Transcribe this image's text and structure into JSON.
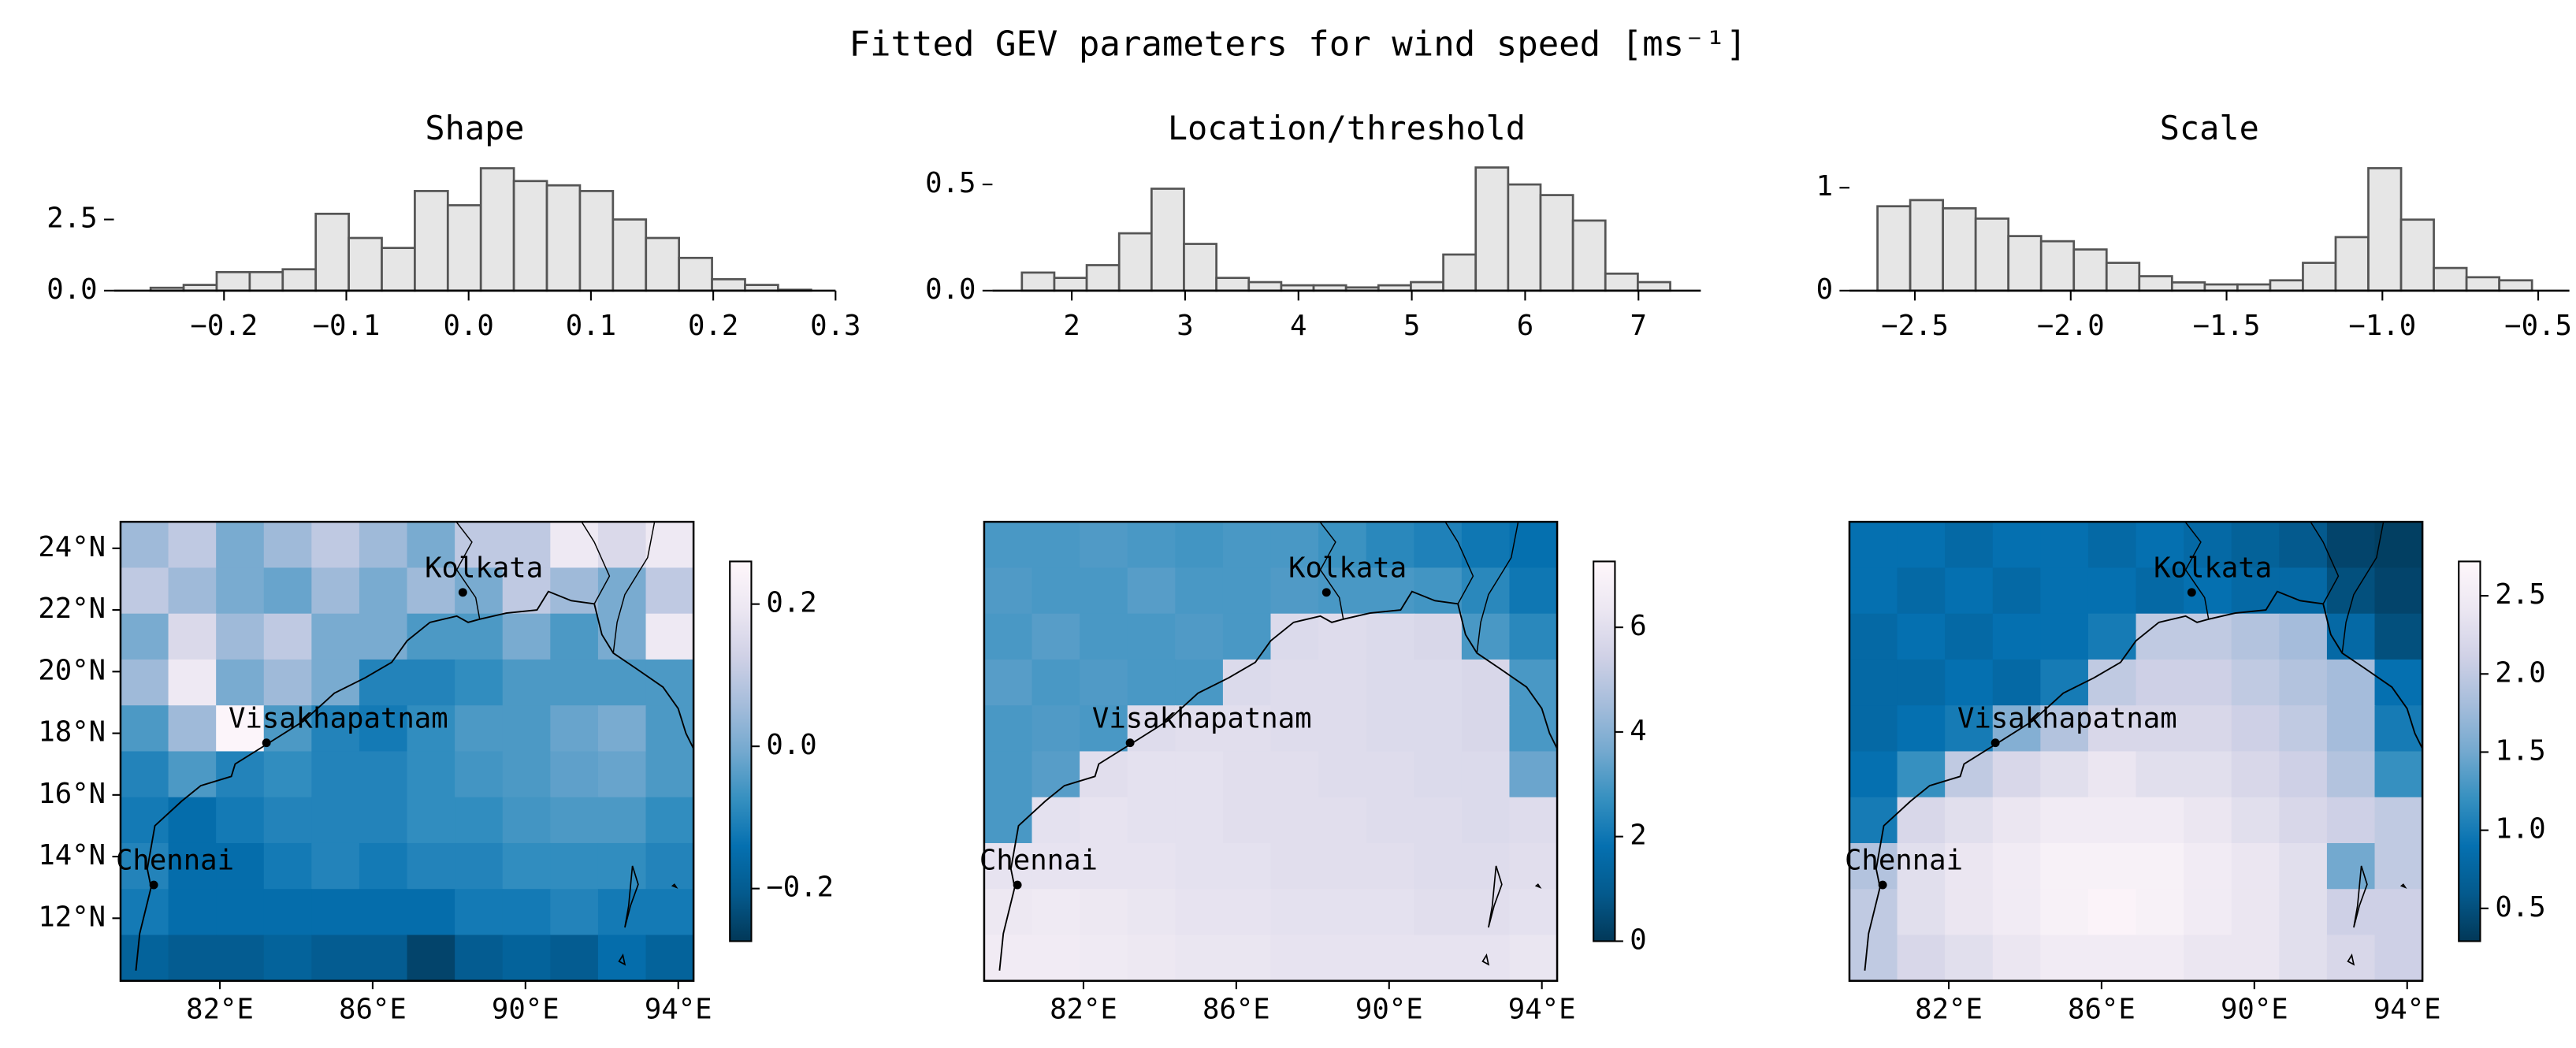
{
  "title": "Fitted GEV parameters for wind speed [ms⁻¹]",
  "chart_data": [
    {
      "type": "histogram",
      "title": "Shape",
      "color": "#e6e6e6",
      "edgecolor": "#555555",
      "bins": [
        -0.26,
        -0.233,
        -0.206,
        -0.179,
        -0.152,
        -0.125,
        -0.098,
        -0.071,
        -0.044,
        -0.017,
        0.01,
        0.037,
        0.064,
        0.091,
        0.118,
        0.145,
        0.172,
        0.199,
        0.226,
        0.253,
        0.28
      ],
      "counts": [
        0.1,
        0.2,
        0.65,
        0.65,
        0.75,
        2.7,
        1.85,
        1.5,
        3.5,
        3.0,
        4.3,
        3.85,
        3.7,
        3.5,
        2.5,
        1.85,
        1.15,
        0.4,
        0.2,
        0.03
      ],
      "xlim": [
        -0.29,
        0.3
      ],
      "xticks": [
        {
          "value": -0.2,
          "label": "−0.2"
        },
        {
          "value": -0.1,
          "label": "−0.1"
        },
        {
          "value": 0,
          "label": "0.0"
        },
        0.1,
        0.2,
        0.3
      ],
      "ylim": [
        0,
        4.7
      ],
      "yticks": [
        {
          "value": 0,
          "label": "0.0"
        },
        2.5
      ]
    },
    {
      "type": "histogram",
      "title": "Location/threshold",
      "color": "#e6e6e6",
      "edgecolor": "#555555",
      "bins": [
        1.56,
        1.846,
        2.132,
        2.418,
        2.704,
        2.99,
        3.276,
        3.562,
        3.848,
        4.134,
        4.42,
        4.706,
        4.992,
        5.278,
        5.564,
        5.85,
        6.136,
        6.422,
        6.708,
        6.994,
        7.28
      ],
      "counts": [
        0.085,
        0.06,
        0.12,
        0.27,
        0.48,
        0.22,
        0.06,
        0.04,
        0.025,
        0.025,
        0.015,
        0.025,
        0.04,
        0.17,
        0.58,
        0.5,
        0.45,
        0.33,
        0.08,
        0.04
      ],
      "xlim": [
        1.3,
        7.55
      ],
      "xticks": [
        2,
        3,
        4,
        5,
        6,
        7
      ],
      "ylim": [
        0,
        0.63
      ],
      "yticks": [
        {
          "value": 0,
          "label": "0.0"
        },
        0.5
      ]
    },
    {
      "type": "histogram",
      "title": "Scale",
      "color": "#e6e6e6",
      "edgecolor": "#555555",
      "bins": [
        -2.62,
        -2.515,
        -2.41,
        -2.305,
        -2.2,
        -2.095,
        -1.99,
        -1.885,
        -1.78,
        -1.675,
        -1.57,
        -1.465,
        -1.36,
        -1.255,
        -1.15,
        -1.045,
        -0.94,
        -0.835,
        -0.73,
        -0.625,
        -0.52
      ],
      "counts": [
        0.82,
        0.88,
        0.8,
        0.7,
        0.53,
        0.48,
        0.4,
        0.27,
        0.14,
        0.08,
        0.06,
        0.06,
        0.1,
        0.27,
        0.52,
        1.19,
        0.69,
        0.22,
        0.13,
        0.1
      ],
      "xlim": [
        -2.71,
        -0.4
      ],
      "xticks": [
        {
          "value": -2.5,
          "label": "−2.5"
        },
        {
          "value": -2.0,
          "label": "−2.0"
        },
        {
          "value": -1.5,
          "label": "−1.5"
        },
        {
          "value": -1.0,
          "label": "−1.0"
        },
        {
          "value": -0.5,
          "label": "−0.5"
        }
      ],
      "ylim": [
        0,
        1.3
      ],
      "yticks": [
        0,
        1
      ]
    },
    {
      "type": "map",
      "colormap": [
        "#023858",
        "#045a8d",
        "#0570b0",
        "#3690c0",
        "#74a9cf",
        "#a6bddb",
        "#d0d1e6",
        "#ece7f2",
        "#fff7fb"
      ],
      "clim": [
        -0.274,
        0.26
      ],
      "cticks": [
        {
          "value": -0.2,
          "label": "−0.2"
        },
        {
          "value": 0,
          "label": "0.0"
        },
        0.2
      ],
      "xlim": [
        79.4,
        94.4
      ],
      "xticks": [
        {
          "value": 82,
          "label": "82°E"
        },
        {
          "value": 86,
          "label": "86°E"
        },
        {
          "value": 90,
          "label": "90°E"
        },
        {
          "value": 94,
          "label": "94°E"
        }
      ],
      "ylim": [
        9.97,
        24.86
      ],
      "yticks": [
        {
          "value": 12,
          "label": "12°N"
        },
        {
          "value": 14,
          "label": "14°N"
        },
        {
          "value": 16,
          "label": "16°N"
        },
        {
          "value": 18,
          "label": "18°N"
        },
        {
          "value": 20,
          "label": "20°N"
        },
        {
          "value": 22,
          "label": "22°N"
        },
        {
          "value": 24,
          "label": "24°N"
        }
      ],
      "annotations": [
        {
          "text": "Kolkata",
          "x": 88.36,
          "y": 22.57
        },
        {
          "text": "Visakhapatnam",
          "x": 83.22,
          "y": 17.69
        },
        {
          "text": "Chennai",
          "x": 80.27,
          "y": 13.08
        }
      ],
      "grid": [
        [
          0.05,
          0.1,
          0.0,
          0.05,
          0.1,
          0.05,
          0.0,
          0.1,
          0.1,
          0.2,
          0.15,
          0.2
        ],
        [
          0.1,
          0.05,
          0.0,
          -0.02,
          0.05,
          0.0,
          0.05,
          0.0,
          0.1,
          0.05,
          0.0,
          0.1
        ],
        [
          0.0,
          0.15,
          0.05,
          0.1,
          0.0,
          0.0,
          -0.05,
          -0.05,
          0.0,
          -0.05,
          0.0,
          0.2
        ],
        [
          0.05,
          0.2,
          0.0,
          0.05,
          0.0,
          -0.1,
          -0.1,
          -0.08,
          -0.05,
          -0.05,
          -0.05,
          -0.05
        ],
        [
          -0.05,
          0.05,
          0.25,
          -0.05,
          -0.1,
          -0.12,
          -0.08,
          -0.05,
          -0.05,
          -0.02,
          0.0,
          -0.05
        ],
        [
          -0.1,
          -0.05,
          -0.1,
          -0.08,
          -0.1,
          -0.1,
          -0.08,
          -0.06,
          -0.05,
          -0.03,
          -0.02,
          -0.05
        ],
        [
          -0.12,
          -0.15,
          -0.12,
          -0.1,
          -0.1,
          -0.1,
          -0.08,
          -0.08,
          -0.06,
          -0.05,
          -0.05,
          -0.08
        ],
        [
          -0.1,
          -0.15,
          -0.15,
          -0.12,
          -0.1,
          -0.12,
          -0.1,
          -0.1,
          -0.08,
          -0.08,
          -0.08,
          -0.1
        ],
        [
          -0.12,
          -0.15,
          -0.15,
          -0.15,
          -0.15,
          -0.15,
          -0.15,
          -0.12,
          -0.12,
          -0.1,
          -0.12,
          -0.12
        ],
        [
          -0.18,
          -0.2,
          -0.2,
          -0.18,
          -0.2,
          -0.2,
          -0.25,
          -0.2,
          -0.18,
          -0.2,
          -0.15,
          -0.18
        ]
      ]
    },
    {
      "type": "map",
      "colormap": [
        "#023858",
        "#045a8d",
        "#0570b0",
        "#3690c0",
        "#74a9cf",
        "#a6bddb",
        "#d0d1e6",
        "#ece7f2",
        "#fff7fb"
      ],
      "clim": [
        0,
        7.26
      ],
      "cticks": [
        0,
        2,
        4,
        6
      ],
      "xlim": [
        79.4,
        94.4
      ],
      "xticks": [
        {
          "value": 82,
          "label": "82°E"
        },
        {
          "value": 86,
          "label": "86°E"
        },
        {
          "value": 90,
          "label": "90°E"
        },
        {
          "value": 94,
          "label": "94°E"
        }
      ],
      "ylim": [
        9.97,
        24.86
      ],
      "annotations": [
        {
          "text": "Kolkata",
          "x": 88.36,
          "y": 22.57
        },
        {
          "text": "Visakhapatnam",
          "x": 83.22,
          "y": 17.69
        },
        {
          "text": "Chennai",
          "x": 80.27,
          "y": 13.08
        }
      ],
      "grid": [
        [
          3,
          3,
          3.1,
          3,
          2.9,
          3,
          3,
          2.8,
          2.5,
          2.3,
          2,
          1.8
        ],
        [
          3.1,
          3,
          3,
          3.2,
          3,
          3,
          3.1,
          3,
          3,
          2.9,
          2.5,
          2
        ],
        [
          3,
          3.2,
          3,
          3,
          3.1,
          3,
          5.8,
          5.9,
          5.8,
          5.7,
          3,
          2.5
        ],
        [
          3.2,
          3,
          3.1,
          3,
          3,
          5.8,
          5.9,
          5.9,
          5.8,
          5.8,
          5.7,
          3
        ],
        [
          3,
          3.1,
          3,
          5.9,
          6,
          6,
          5.9,
          5.9,
          5.8,
          5.8,
          5.7,
          3
        ],
        [
          3,
          3.2,
          6,
          6.1,
          6.1,
          6,
          6,
          5.9,
          5.9,
          5.8,
          5.8,
          3.5
        ],
        [
          3,
          6.1,
          6.2,
          6.1,
          6.1,
          6,
          6,
          6,
          5.9,
          5.9,
          5.8,
          5.9
        ],
        [
          6.2,
          6.2,
          6.2,
          6.2,
          6.1,
          6.1,
          6,
          6,
          6,
          5.9,
          5.9,
          6
        ],
        [
          6.4,
          6.5,
          6.4,
          6.3,
          6.2,
          6.2,
          6.1,
          6.1,
          6.1,
          6,
          6,
          6.1
        ],
        [
          6.6,
          6.6,
          6.5,
          6.4,
          6.3,
          6.3,
          6.2,
          6.2,
          6.2,
          6.2,
          6.2,
          6.3
        ]
      ]
    },
    {
      "type": "map",
      "colormap": [
        "#023858",
        "#045a8d",
        "#0570b0",
        "#3690c0",
        "#74a9cf",
        "#a6bddb",
        "#d0d1e6",
        "#ece7f2",
        "#fff7fb"
      ],
      "clim": [
        0.29,
        2.72
      ],
      "cticks": [
        0.5,
        {
          "value": 1,
          "label": "1.0"
        },
        1.5,
        {
          "value": 2,
          "label": "2.0"
        },
        2.5
      ],
      "xlim": [
        79.4,
        94.4
      ],
      "xticks": [
        {
          "value": 82,
          "label": "82°E"
        },
        {
          "value": 86,
          "label": "86°E"
        },
        {
          "value": 90,
          "label": "90°E"
        },
        {
          "value": 94,
          "label": "94°E"
        }
      ],
      "ylim": [
        9.97,
        24.86
      ],
      "annotations": [
        {
          "text": "Kolkata",
          "x": 88.36,
          "y": 22.57
        },
        {
          "text": "Visakhapatnam",
          "x": 83.22,
          "y": 17.69
        },
        {
          "text": "Chennai",
          "x": 80.27,
          "y": 13.08
        }
      ],
      "grid": [
        [
          0.9,
          0.9,
          0.8,
          0.9,
          0.9,
          0.8,
          0.9,
          0.8,
          0.7,
          0.6,
          0.4,
          0.35
        ],
        [
          0.9,
          0.8,
          0.9,
          0.8,
          0.9,
          0.9,
          0.8,
          0.9,
          0.8,
          0.8,
          0.5,
          0.4
        ],
        [
          0.8,
          0.9,
          0.8,
          0.9,
          0.9,
          1.0,
          2.0,
          2.0,
          1.9,
          1.8,
          0.8,
          0.5
        ],
        [
          0.8,
          0.8,
          0.9,
          0.8,
          1.0,
          2.0,
          2.1,
          2.1,
          2.0,
          1.9,
          1.8,
          0.9
        ],
        [
          0.8,
          0.9,
          1.0,
          1.6,
          1.9,
          2.2,
          2.2,
          2.2,
          2.1,
          2.0,
          1.8,
          1.0
        ],
        [
          0.9,
          1.2,
          2.0,
          2.2,
          2.3,
          2.4,
          2.3,
          2.3,
          2.2,
          2.1,
          1.9,
          1.2
        ],
        [
          1.0,
          2.2,
          2.3,
          2.4,
          2.5,
          2.5,
          2.5,
          2.4,
          2.3,
          2.2,
          2.1,
          2.0
        ],
        [
          1.9,
          2.3,
          2.4,
          2.5,
          2.6,
          2.6,
          2.6,
          2.5,
          2.4,
          2.3,
          1.5,
          2.0
        ],
        [
          2.0,
          2.3,
          2.4,
          2.5,
          2.6,
          2.65,
          2.6,
          2.5,
          2.4,
          2.3,
          2.1,
          2.1
        ],
        [
          2.0,
          2.2,
          2.3,
          2.4,
          2.5,
          2.5,
          2.5,
          2.4,
          2.4,
          2.3,
          2.2,
          2.1
        ]
      ]
    }
  ]
}
